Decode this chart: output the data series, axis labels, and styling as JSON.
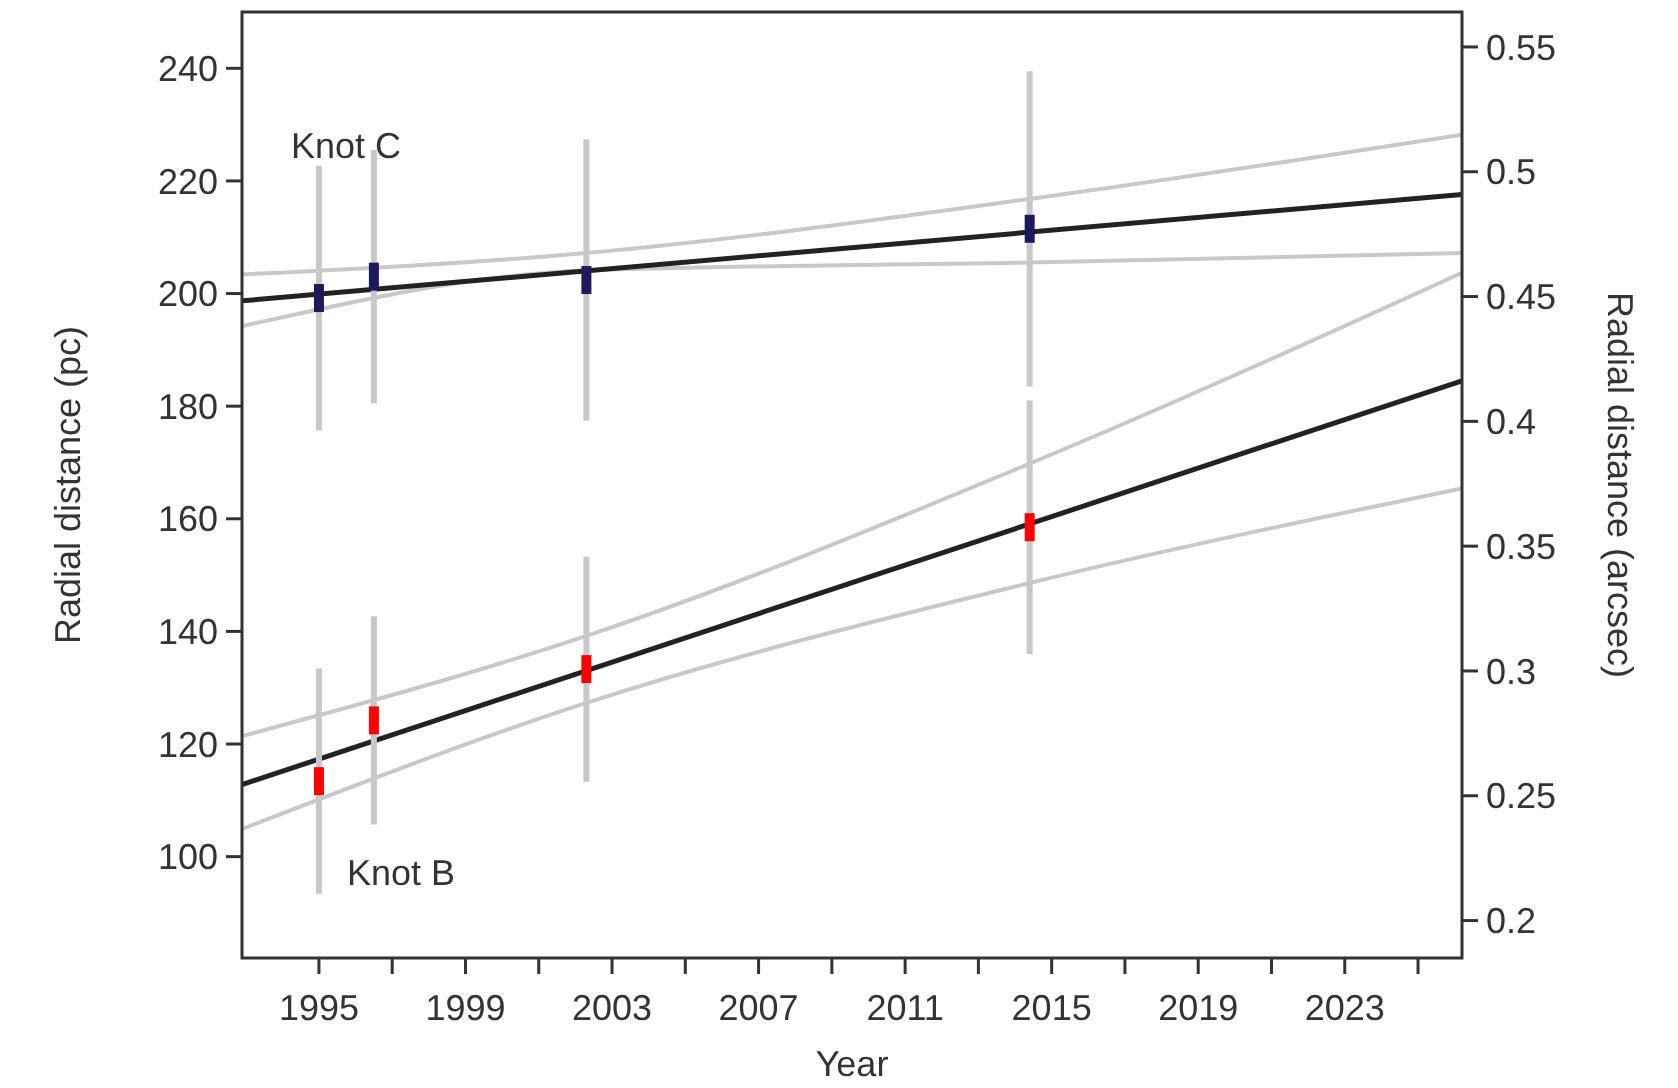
{
  "chart_data": {
    "type": "scatter",
    "xlabel": "Year",
    "ylabel": "Radial distance (pc)",
    "y2label": "Radial distance (arcsec)",
    "xlim": [
      1992.9,
      2026.2
    ],
    "ylim": [
      82,
      250
    ],
    "y2lim": [
      0.185,
      0.564
    ],
    "xticks": [
      1995,
      {
        "value": 1997,
        "label": null
      },
      1999,
      {
        "value": 2001,
        "label": null
      },
      2003,
      {
        "value": 2005,
        "label": null
      },
      2007,
      {
        "value": 2009,
        "label": null
      },
      2011,
      {
        "value": 2013,
        "label": null
      },
      2015,
      {
        "value": 2017,
        "label": null
      },
      2019,
      {
        "value": 2021,
        "label": null
      },
      2023,
      {
        "value": 2025,
        "label": null
      }
    ],
    "yticks": [
      100,
      120,
      140,
      160,
      180,
      200,
      220,
      240
    ],
    "y2ticks": [
      0.2,
      0.25,
      0.3,
      0.35,
      0.4,
      0.45,
      0.5,
      0.55
    ],
    "grid": false,
    "legend": false,
    "series": [
      {
        "type": "line",
        "color": "#c8c8c8",
        "x": [
          1992.9,
          2002.3,
          2014.4,
          2026.2
        ],
        "values": [
          203.4,
          207.2,
          216.8,
          228.2
        ]
      },
      {
        "type": "line",
        "color": "#c8c8c8",
        "x": [
          1992.9,
          2002.3,
          2014.4,
          2026.2
        ],
        "values": [
          194.2,
          204.1,
          205.5,
          207.2
        ]
      },
      {
        "type": "line",
        "color": "#c8c8c8",
        "x": [
          1992.9,
          2002.3,
          2014.4,
          2026.2
        ],
        "values": [
          121.4,
          139.2,
          169.8,
          203.7
        ]
      },
      {
        "type": "line",
        "color": "#c8c8c8",
        "x": [
          1992.9,
          2002.3,
          2014.4,
          2026.2
        ],
        "values": [
          104.9,
          127.3,
          148.6,
          165.4
        ]
      },
      {
        "type": "line",
        "color": "#222222",
        "x": [
          1992.9,
          2026.2
        ],
        "values": [
          198.7,
          217.6
        ]
      },
      {
        "type": "line",
        "color": "#222222",
        "x": [
          1992.9,
          2026.2
        ],
        "values": [
          112.8,
          184.5
        ]
      },
      {
        "type": "scatter",
        "name": "Knot C",
        "color": "#1c1a5c",
        "marker": "square",
        "x": [
          1995,
          1996.5,
          2002.3,
          2014.4
        ],
        "values": [
          199.2,
          203,
          202.4,
          211.5
        ],
        "errors": [
          23.5,
          22.5,
          25,
          28
        ]
      },
      {
        "type": "scatter",
        "name": "Knot B",
        "color": "#ff0000",
        "marker": "square",
        "x": [
          1995,
          1996.5,
          2002.3,
          2014.4
        ],
        "values": [
          113.4,
          124.2,
          133.3,
          158.5
        ],
        "errors": [
          20,
          18.5,
          20,
          22.5
        ]
      }
    ]
  }
}
